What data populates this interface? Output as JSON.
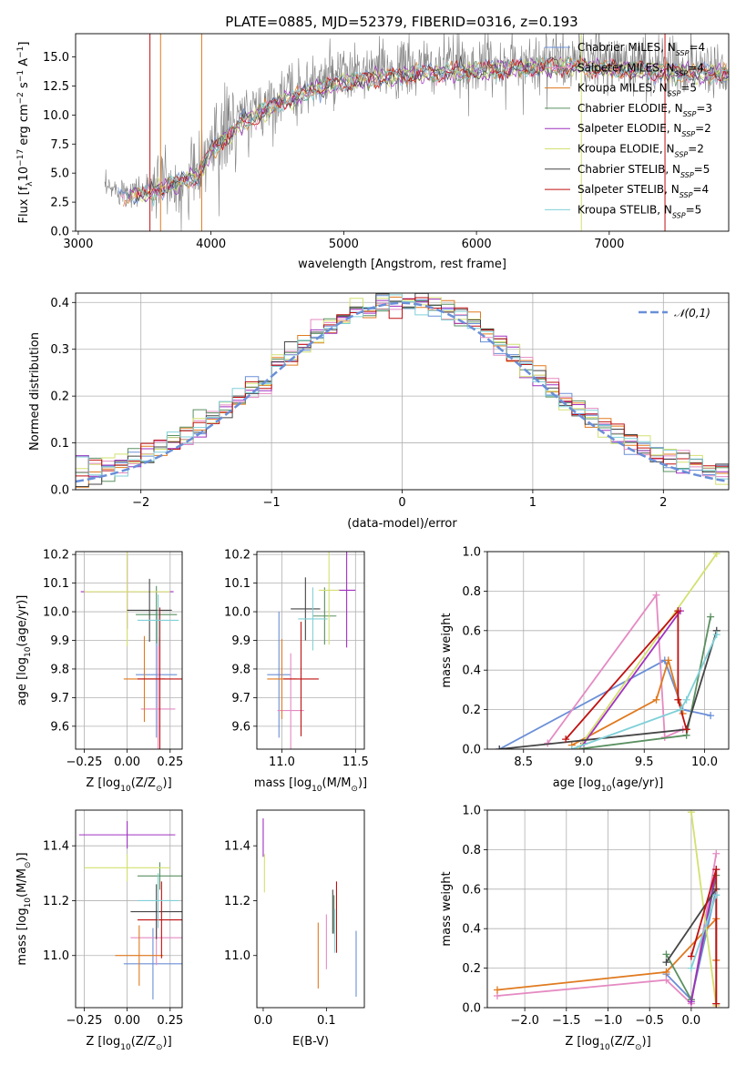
{
  "figure": {
    "title": "PLATE=0885, MJD=52379, FIBERID=0316, z=0.193"
  },
  "models": [
    {
      "name": "Chabrier MILES",
      "nssp": 4,
      "color": "#6a8fd8"
    },
    {
      "name": "Salpeter MILES",
      "nssp": 4,
      "color": "#e58ac2"
    },
    {
      "name": "Kroupa MILES",
      "nssp": 5,
      "color": "#e07a1f"
    },
    {
      "name": "Chabrier ELODIE",
      "nssp": 3,
      "color": "#5a9060"
    },
    {
      "name": "Salpeter ELODIE",
      "nssp": 2,
      "color": "#a030c0"
    },
    {
      "name": "Kroupa ELODIE",
      "nssp": 2,
      "color": "#d4e070"
    },
    {
      "name": "Chabrier STELIB",
      "nssp": 5,
      "color": "#454545"
    },
    {
      "name": "Salpeter STELIB",
      "nssp": 4,
      "color": "#c01010"
    },
    {
      "name": "Kroupa STELIB",
      "nssp": 5,
      "color": "#80d0d8"
    }
  ],
  "chart_data": [
    {
      "id": "spectrum",
      "type": "line",
      "xlabel_parts": [
        "wavelength [Angstrom, rest frame]"
      ],
      "ylabel_parts": [
        "Flux [f",
        "λ",
        "10",
        "−17",
        " erg cm",
        "−2",
        " s",
        "−1",
        " A",
        "−1",
        "]"
      ],
      "xlim": [
        2980,
        7900
      ],
      "ylim": [
        0,
        17
      ],
      "xticks": [
        3000,
        4000,
        5000,
        6000,
        7000
      ],
      "yticks": [
        0.0,
        2.5,
        5.0,
        7.5,
        10.0,
        12.5,
        15.0
      ],
      "ytick_labels": [
        "0.0",
        "2.5",
        "5.0",
        "7.5",
        "10.0",
        "12.5",
        "15.0"
      ],
      "data_color": "#808080",
      "x_range": [
        3200,
        7900
      ],
      "continuum": {
        "x": [
          3200,
          3500,
          3700,
          3900,
          4000,
          4200,
          4500,
          4800,
          5000,
          5300,
          5600,
          6000,
          6300,
          6600,
          7000,
          7400,
          7900
        ],
        "y": [
          3.6,
          3.6,
          4.5,
          5.2,
          7.5,
          9.5,
          11.5,
          12.8,
          13.3,
          13.8,
          14.0,
          14.3,
          14.5,
          14.7,
          14.5,
          14.2,
          14.0
        ]
      },
      "legend_loc": "upper right"
    },
    {
      "id": "residuals",
      "type": "histogram",
      "xlabel": "(data-model)/error",
      "ylabel": "Normed distribution",
      "xlim": [
        -2.5,
        2.5
      ],
      "ylim": [
        0,
        0.42
      ],
      "xticks": [
        -2,
        -1,
        0,
        1,
        2
      ],
      "xtick_labels": [
        "−2",
        "−1",
        "0",
        "1",
        "2"
      ],
      "yticks": [
        0.0,
        0.1,
        0.2,
        0.3,
        0.4
      ],
      "ytick_labels": [
        "0.0",
        "0.1",
        "0.2",
        "0.3",
        "0.4"
      ],
      "bin_width": 0.1,
      "reference": {
        "name": "𝒩(0,1)",
        "mean": 0,
        "sigma": 1,
        "color": "#6a8fd8"
      },
      "legend_loc": "upper right",
      "grid": true
    },
    {
      "id": "age-vs-Z",
      "type": "errorbar",
      "xlabel_parts": [
        "Z [log",
        "10",
        "(Z/Z",
        "⊙",
        ")]"
      ],
      "ylabel_parts": [
        "age  [log",
        "10",
        "(age/yr)]"
      ],
      "xlim": [
        -0.3,
        0.32
      ],
      "ylim": [
        9.52,
        10.21
      ],
      "xticks": [
        -0.25,
        0.0,
        0.25
      ],
      "xtick_labels": [
        "−0.25",
        "0.00",
        "0.25"
      ],
      "yticks": [
        9.6,
        9.7,
        9.8,
        9.9,
        10.0,
        10.1,
        10.2
      ],
      "ytick_labels": [
        "9.6",
        "9.7",
        "9.8",
        "9.9",
        "10.0",
        "10.1",
        "10.2"
      ],
      "points": [
        {
          "model": 0,
          "x": 0.17,
          "y": 9.78,
          "xerr": 0.12,
          "yerr": 0.22
        },
        {
          "model": 1,
          "x": 0.18,
          "y": 9.66,
          "xerr": 0.1,
          "yerr": 0.25
        },
        {
          "model": 2,
          "x": 0.1,
          "y": 9.765,
          "xerr": 0.12,
          "yerr": 0.15
        },
        {
          "model": 3,
          "x": 0.17,
          "y": 9.99,
          "xerr": 0.12,
          "yerr": 0.1
        },
        {
          "model": 4,
          "x": 0.0,
          "y": 10.07,
          "xerr": 0.27,
          "yerr": 0.13
        },
        {
          "model": 5,
          "x": 0.0,
          "y": 10.07,
          "xerr": 0.25,
          "yerr": 0.19
        },
        {
          "model": 6,
          "x": 0.13,
          "y": 10.005,
          "xerr": 0.13,
          "yerr": 0.11
        },
        {
          "model": 7,
          "x": 0.19,
          "y": 9.765,
          "xerr": 0.13,
          "yerr": 0.25
        },
        {
          "model": 8,
          "x": 0.18,
          "y": 9.97,
          "xerr": 0.12,
          "yerr": 0.09
        }
      ],
      "grid": true
    },
    {
      "id": "age-vs-mass",
      "type": "errorbar",
      "xlabel_parts": [
        "mass [log",
        "10",
        "(M/M",
        "⊙",
        ")]"
      ],
      "ylabel_parts": [],
      "xlim": [
        10.83,
        11.56
      ],
      "ylim": [
        9.52,
        10.21
      ],
      "xticks": [
        11.0,
        11.5
      ],
      "xtick_labels": [
        "11.0",
        "11.5"
      ],
      "yticks": [
        9.6,
        9.7,
        9.8,
        9.9,
        10.0,
        10.1,
        10.2
      ],
      "ytick_labels": [
        "9.6",
        "9.7",
        "9.8",
        "9.9",
        "10.0",
        "10.1",
        "10.2"
      ],
      "points": [
        {
          "model": 0,
          "x": 10.98,
          "y": 9.78,
          "xerr": 0.08,
          "yerr": 0.22
        },
        {
          "model": 1,
          "x": 11.06,
          "y": 9.655,
          "xerr": 0.09,
          "yerr": 0.2
        },
        {
          "model": 2,
          "x": 11.0,
          "y": 9.765,
          "xerr": 0.1,
          "yerr": 0.14
        },
        {
          "model": 3,
          "x": 11.29,
          "y": 9.985,
          "xerr": 0.08,
          "yerr": 0.1
        },
        {
          "model": 4,
          "x": 11.44,
          "y": 10.075,
          "xerr": 0.06,
          "yerr": 0.2
        },
        {
          "model": 5,
          "x": 11.32,
          "y": 10.075,
          "xerr": 0.07,
          "yerr": 0.19
        },
        {
          "model": 6,
          "x": 11.16,
          "y": 10.01,
          "xerr": 0.1,
          "yerr": 0.11
        },
        {
          "model": 7,
          "x": 11.13,
          "y": 9.765,
          "xerr": 0.12,
          "yerr": 0.2
        },
        {
          "model": 8,
          "x": 11.21,
          "y": 9.975,
          "xerr": 0.1,
          "yerr": 0.11
        }
      ],
      "grid": true
    },
    {
      "id": "weight-vs-age",
      "type": "line",
      "xlabel_parts": [
        "age  [log",
        "10",
        "(age/yr)]"
      ],
      "ylabel_parts": [
        "mass weight"
      ],
      "xlim": [
        8.2,
        10.2
      ],
      "ylim": [
        0,
        1.0
      ],
      "xticks": [
        8.5,
        9.0,
        9.5,
        10.0
      ],
      "xtick_labels": [
        "8.5",
        "9.0",
        "9.5",
        "10.0"
      ],
      "yticks": [
        0.0,
        0.2,
        0.4,
        0.6,
        0.8,
        1.0
      ],
      "ytick_labels": [
        "0.0",
        "0.2",
        "0.4",
        "0.6",
        "0.8",
        "1.0"
      ],
      "series": [
        {
          "model": 0,
          "x": [
            8.3,
            9.67,
            9.82,
            10.05
          ],
          "y": [
            0.0,
            0.45,
            0.2,
            0.17
          ]
        },
        {
          "model": 1,
          "x": [
            8.7,
            9.6,
            9.67,
            9.82
          ],
          "y": [
            0.03,
            0.78,
            0.06,
            0.1
          ]
        },
        {
          "model": 2,
          "x": [
            8.9,
            9.6,
            9.7,
            9.82
          ],
          "y": [
            0.02,
            0.25,
            0.45,
            0.18
          ]
        },
        {
          "model": 3,
          "x": [
            8.95,
            9.85,
            10.05
          ],
          "y": [
            0.0,
            0.07,
            0.67
          ]
        },
        {
          "model": 4,
          "x": [
            8.95,
            9.0,
            9.8
          ],
          "y": [
            0.0,
            0.03,
            0.7
          ]
        },
        {
          "model": 5,
          "x": [
            8.95,
            10.1
          ],
          "y": [
            0.0,
            0.99
          ]
        },
        {
          "model": 6,
          "x": [
            8.3,
            9.85,
            10.1
          ],
          "y": [
            0.0,
            0.1,
            0.6
          ]
        },
        {
          "model": 7,
          "x": [
            8.85,
            9.78,
            9.78,
            9.85
          ],
          "y": [
            0.05,
            0.7,
            0.25,
            0.1
          ]
        },
        {
          "model": 8,
          "x": [
            8.9,
            9.8,
            9.85,
            10.1
          ],
          "y": [
            0.0,
            0.2,
            0.25,
            0.58
          ]
        }
      ],
      "grid": true
    },
    {
      "id": "mass-vs-Z",
      "type": "errorbar",
      "xlabel_parts": [
        "Z [log",
        "10",
        "(Z/Z",
        "⊙",
        ")]"
      ],
      "ylabel_parts": [
        "mass [log",
        "10",
        "(M/M",
        "⊙",
        ")]"
      ],
      "xlim": [
        -0.3,
        0.32
      ],
      "ylim": [
        10.81,
        11.53
      ],
      "xticks": [
        -0.25,
        0.0,
        0.25
      ],
      "xtick_labels": [
        "−0.25",
        "0.00",
        "0.25"
      ],
      "yticks": [
        11.0,
        11.2,
        11.4
      ],
      "ytick_labels": [
        "11.0",
        "11.2",
        "11.4"
      ],
      "points": [
        {
          "model": 0,
          "x": 0.15,
          "y": 10.97,
          "xerr": 0.17,
          "yerr": 0.13
        },
        {
          "model": 1,
          "x": 0.17,
          "y": 11.065,
          "xerr": 0.15,
          "yerr": 0.1
        },
        {
          "model": 2,
          "x": 0.07,
          "y": 11.0,
          "xerr": 0.14,
          "yerr": 0.11
        },
        {
          "model": 3,
          "x": 0.19,
          "y": 11.29,
          "xerr": 0.13,
          "yerr": 0.05
        },
        {
          "model": 4,
          "x": 0.0,
          "y": 11.44,
          "xerr": 0.28,
          "yerr": 0.05
        },
        {
          "model": 5,
          "x": 0.0,
          "y": 11.32,
          "xerr": 0.25,
          "yerr": 0.05
        },
        {
          "model": 6,
          "x": 0.17,
          "y": 11.16,
          "xerr": 0.15,
          "yerr": 0.1
        },
        {
          "model": 7,
          "x": 0.2,
          "y": 11.13,
          "xerr": 0.14,
          "yerr": 0.14
        },
        {
          "model": 8,
          "x": 0.18,
          "y": 11.2,
          "xerr": 0.12,
          "yerr": 0.1
        }
      ],
      "grid": true
    },
    {
      "id": "mass-vs-EBV",
      "type": "errorbar",
      "xlabel_parts": [
        "E(B-V)"
      ],
      "ylabel_parts": [],
      "xlim": [
        -0.01,
        0.16
      ],
      "ylim": [
        10.81,
        11.53
      ],
      "xticks": [
        0.0,
        0.1
      ],
      "xtick_labels": [
        "0.0",
        "0.1"
      ],
      "yticks": [
        11.0,
        11.2,
        11.4
      ],
      "ytick_labels": [
        "11.0",
        "11.2",
        "11.4"
      ],
      "points": [
        {
          "model": 0,
          "x": 0.147,
          "y": 10.97,
          "xerr": 0,
          "yerr": 0.12
        },
        {
          "model": 1,
          "x": 0.1,
          "y": 11.05,
          "xerr": 0,
          "yerr": 0.1
        },
        {
          "model": 2,
          "x": 0.087,
          "y": 11.0,
          "xerr": 0,
          "yerr": 0.12
        },
        {
          "model": 3,
          "x": 0.112,
          "y": 11.15,
          "xerr": 0,
          "yerr": 0.07
        },
        {
          "model": 4,
          "x": 0.0,
          "y": 11.43,
          "xerr": 0,
          "yerr": 0.07
        },
        {
          "model": 5,
          "x": 0.002,
          "y": 11.3,
          "xerr": 0,
          "yerr": 0.07
        },
        {
          "model": 6,
          "x": 0.11,
          "y": 11.16,
          "xerr": 0,
          "yerr": 0.08
        },
        {
          "model": 7,
          "x": 0.116,
          "y": 11.14,
          "xerr": 0,
          "yerr": 0.13
        },
        {
          "model": 8,
          "x": 0.113,
          "y": 11.09,
          "xerr": 0,
          "yerr": 0.08
        }
      ],
      "grid": false
    },
    {
      "id": "weight-vs-Z",
      "type": "line",
      "xlabel_parts": [
        "Z [log",
        "10",
        "(Z/Z",
        "⊙",
        ")]"
      ],
      "ylabel_parts": [
        "mass weight"
      ],
      "xlim": [
        -2.45,
        0.45
      ],
      "ylim": [
        0,
        1.0
      ],
      "xticks": [
        -2.0,
        -1.5,
        -1.0,
        -0.5,
        0.0
      ],
      "xtick_labels": [
        "−2.0",
        "−1.5",
        "−1.0",
        "−0.5",
        "0.0"
      ],
      "yticks": [
        0.0,
        0.2,
        0.4,
        0.6,
        0.8,
        1.0
      ],
      "ytick_labels": [
        "0.0",
        "0.2",
        "0.4",
        "0.6",
        "0.8",
        "1.0"
      ],
      "series": [
        {
          "model": 0,
          "x": [
            -0.3,
            0.0,
            0.3
          ],
          "y": [
            0.17,
            0.04,
            0.6
          ]
        },
        {
          "model": 1,
          "x": [
            -2.33,
            -0.3,
            0.0,
            0.3
          ],
          "y": [
            0.06,
            0.14,
            0.02,
            0.78
          ]
        },
        {
          "model": 2,
          "x": [
            -2.33,
            -0.3,
            0.3,
            0.3
          ],
          "y": [
            0.09,
            0.18,
            0.45,
            0.24
          ]
        },
        {
          "model": 3,
          "x": [
            -0.3,
            0.0,
            0.3
          ],
          "y": [
            0.27,
            0.04,
            0.67
          ]
        },
        {
          "model": 4,
          "x": [
            0.0,
            0.3
          ],
          "y": [
            0.03,
            0.7
          ]
        },
        {
          "model": 5,
          "x": [
            0.0,
            0.3
          ],
          "y": [
            0.99,
            0.01
          ]
        },
        {
          "model": 6,
          "x": [
            -0.3,
            0.3,
            0.3
          ],
          "y": [
            0.23,
            0.6,
            0.02
          ]
        },
        {
          "model": 7,
          "x": [
            0.0,
            0.3,
            0.3
          ],
          "y": [
            0.26,
            0.7,
            0.02
          ]
        },
        {
          "model": 8,
          "x": [
            0.0,
            0.3
          ],
          "y": [
            0.2,
            0.57
          ]
        }
      ],
      "grid": true
    }
  ]
}
